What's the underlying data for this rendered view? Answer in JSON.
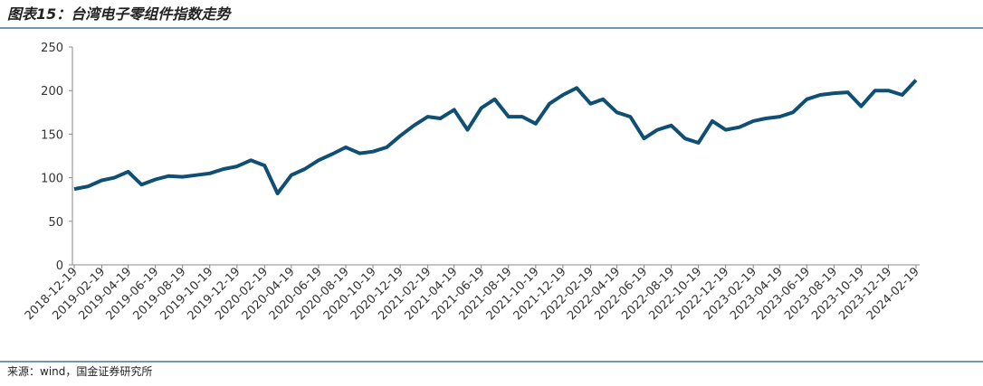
{
  "chart_data": {
    "type": "line",
    "title": "图表15：台湾电子零组件指数走势",
    "source": "来源：wind，国金证券研究所",
    "x": [
      "2018-12-19",
      "2019-01-19",
      "2019-02-19",
      "2019-03-19",
      "2019-04-19",
      "2019-05-19",
      "2019-06-19",
      "2019-07-19",
      "2019-08-19",
      "2019-09-19",
      "2019-10-19",
      "2019-11-19",
      "2019-12-19",
      "2020-01-19",
      "2020-02-19",
      "2020-03-19",
      "2020-04-19",
      "2020-05-19",
      "2020-06-19",
      "2020-07-19",
      "2020-08-19",
      "2020-09-19",
      "2020-10-19",
      "2020-11-19",
      "2020-12-19",
      "2021-01-19",
      "2021-02-19",
      "2021-03-19",
      "2021-04-19",
      "2021-05-19",
      "2021-06-19",
      "2021-07-19",
      "2021-08-19",
      "2021-09-19",
      "2021-10-19",
      "2021-11-19",
      "2021-12-19",
      "2022-01-19",
      "2022-02-19",
      "2022-03-19",
      "2022-04-19",
      "2022-05-19",
      "2022-06-19",
      "2022-07-19",
      "2022-08-19",
      "2022-09-19",
      "2022-10-19",
      "2022-11-19",
      "2022-12-19",
      "2023-01-19",
      "2023-02-19",
      "2023-03-19",
      "2023-04-19",
      "2023-05-19",
      "2023-06-19",
      "2023-07-19",
      "2023-08-19",
      "2023-09-19",
      "2023-10-19",
      "2023-11-19",
      "2023-12-19",
      "2024-01-19",
      "2024-02-19"
    ],
    "values": [
      87,
      90,
      97,
      100,
      107,
      92,
      98,
      102,
      101,
      103,
      105,
      110,
      113,
      120,
      114,
      82,
      103,
      110,
      120,
      127,
      135,
      128,
      130,
      135,
      148,
      160,
      170,
      168,
      178,
      155,
      180,
      190,
      170,
      170,
      162,
      185,
      195,
      203,
      185,
      190,
      175,
      170,
      145,
      155,
      160,
      145,
      140,
      165,
      155,
      158,
      165,
      168,
      170,
      175,
      190,
      195,
      197,
      198,
      182,
      200,
      200,
      195,
      212
    ],
    "color": "#0e4f73",
    "xlim": [
      "2018-12-19",
      "2024-02-19"
    ],
    "xticks": [
      "2018-12-19",
      "2019-02-19",
      "2019-04-19",
      "2019-06-19",
      "2019-08-19",
      "2019-10-19",
      "2019-12-19",
      "2020-02-19",
      "2020-04-19",
      "2020-06-19",
      "2020-08-19",
      "2020-10-19",
      "2020-12-19",
      "2021-02-19",
      "2021-04-19",
      "2021-06-19",
      "2021-08-19",
      "2021-10-19",
      "2021-12-19",
      "2022-02-19",
      "2022-04-19",
      "2022-06-19",
      "2022-08-19",
      "2022-10-19",
      "2022-12-19",
      "2023-02-19",
      "2023-04-19",
      "2023-06-19",
      "2023-08-19",
      "2023-10-19",
      "2023-12-19",
      "2024-02-19"
    ],
    "ylim": [
      0,
      250
    ],
    "yticks": [
      0,
      50,
      100,
      150,
      200,
      250
    ]
  }
}
